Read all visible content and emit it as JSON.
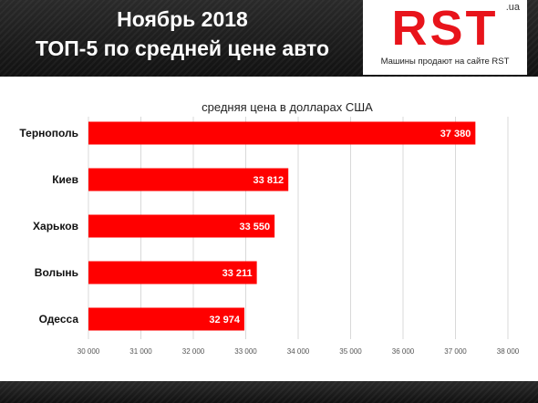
{
  "header": {
    "title_line1": "Ноябрь 2018",
    "title_line2": "ТОП-5 по средней цене авто"
  },
  "logo": {
    "text": "RST",
    "domain": ".ua",
    "tagline": "Машины продают на сайте RST"
  },
  "colors": {
    "bar": "#ff0000",
    "header_bg": "#1a1a1a",
    "logo_red": "#e8141b",
    "grid": "#d9d9d9"
  },
  "chart_data": {
    "type": "bar",
    "orientation": "horizontal",
    "title": "средняя цена в долларах США",
    "categories": [
      "Тернополь",
      "Киев",
      "Харьков",
      "Волынь",
      "Одесса"
    ],
    "values": [
      37380,
      33812,
      33550,
      33211,
      32974
    ],
    "value_labels": [
      "37 380",
      "33 812",
      "33 550",
      "33 211",
      "32 974"
    ],
    "xlim": [
      30000,
      38000
    ],
    "x_ticks": [
      30000,
      31000,
      32000,
      33000,
      34000,
      35000,
      36000,
      37000,
      38000
    ],
    "x_tick_labels": [
      "30 000",
      "31 000",
      "32 000",
      "33 000",
      "34 000",
      "35 000",
      "36 000",
      "37 000",
      "38 000"
    ],
    "grid": true,
    "legend": "none"
  }
}
